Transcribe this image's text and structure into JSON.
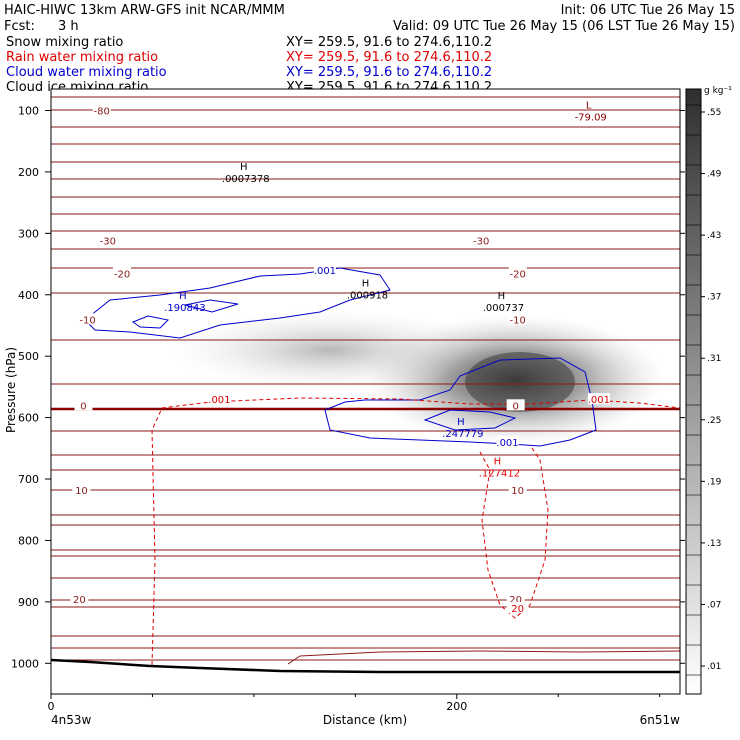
{
  "header": {
    "line1_left": "HAIC-HIWC 13km ARW-GFS init   NCAR/MMM",
    "line1_right": "Init: 06 UTC Tue 26 May 15",
    "fcst_label": "Fcst:",
    "fcst_value": "3 h",
    "valid": "Valid: 09 UTC Tue 26 May 15 (06 LST Tue 26 May 15)"
  },
  "legend": [
    {
      "label": "Snow mixing ratio",
      "xy": "XY= 259.5, 91.6 to 274.6,110.2",
      "color": "#000000"
    },
    {
      "label": "Rain water mixing ratio",
      "xy": "XY= 259.5, 91.6 to 274.6,110.2",
      "color": "#dd0000"
    },
    {
      "label": "Cloud water mixing ratio",
      "xy": "XY= 259.5, 91.6 to 274.6,110.2",
      "color": "#0000cc"
    },
    {
      "label": "Cloud ice mixing ratio",
      "xy": "XY= 259.5, 91.6 to 274.6,110.2",
      "color": "#000000"
    }
  ],
  "chart_data": {
    "type": "contour-cross-section",
    "xlabel": "Distance (km)",
    "ylabel": "Pressure (hPa)",
    "xlim": [
      0,
      310
    ],
    "ylim": [
      1050,
      65
    ],
    "x_ticks": [
      0,
      200
    ],
    "y_ticks": [
      100,
      200,
      300,
      400,
      500,
      600,
      700,
      800,
      900,
      1000
    ],
    "x_endpoint_labels": [
      "4n53w",
      "6n51w"
    ],
    "colorbar": {
      "unit": "g kg⁻¹",
      "tick_labels": [
        ".01",
        ".07",
        ".13",
        ".19",
        ".25",
        ".31",
        ".37",
        ".43",
        ".49",
        ".55"
      ]
    },
    "temperature_contours": [
      {
        "label": "-80",
        "p": 100,
        "x": 25
      },
      {
        "label": "-30",
        "p": 312,
        "x": 28
      },
      {
        "label": "-30",
        "p": 312,
        "x": 212
      },
      {
        "label": "-20",
        "p": 365,
        "x": 35
      },
      {
        "label": "-20",
        "p": 365,
        "x": 230
      },
      {
        "label": "-10",
        "p": 440,
        "x": 18
      },
      {
        "label": "-10",
        "p": 440,
        "x": 230
      },
      {
        "label": "0",
        "p": 580,
        "x": 16
      },
      {
        "label": "0",
        "p": 580,
        "x": 229
      },
      {
        "label": "10",
        "p": 718,
        "x": 15
      },
      {
        "label": "10",
        "p": 718,
        "x": 230
      },
      {
        "label": "20",
        "p": 895,
        "x": 14
      },
      {
        "label": "20",
        "p": 895,
        "x": 229
      }
    ],
    "extrema": [
      {
        "kind": "L",
        "value": "-79.09",
        "x": 265,
        "p": 100,
        "color": "#8b0000"
      },
      {
        "kind": "H",
        "value": ".0007378",
        "x": 95,
        "p": 200,
        "color": "#000000"
      },
      {
        "kind": "H",
        "value": ".000918",
        "x": 155,
        "p": 390,
        "color": "#000000"
      },
      {
        "kind": "H",
        "value": ".000737",
        "x": 222,
        "p": 410,
        "color": "#000000"
      },
      {
        "kind": "H",
        "value": ".190843",
        "x": 65,
        "p": 410,
        "color": "#0000cc"
      },
      {
        "kind": "H",
        "value": ".247779",
        "x": 202,
        "p": 615,
        "color": "#0000cc"
      },
      {
        "kind": "H",
        "value": ".127412",
        "x": 220,
        "p": 680,
        "color": "#dd0000"
      }
    ],
    "contour_value_labels": [
      {
        "value": ".001",
        "x": 135,
        "p": 360,
        "color": "#0000cc"
      },
      {
        "value": ".001",
        "x": 225,
        "p": 640,
        "color": "#0000cc"
      },
      {
        "value": ".001",
        "x": 83,
        "p": 570,
        "color": "#dd0000"
      },
      {
        "value": ".001",
        "x": 270,
        "p": 570,
        "color": "#dd0000"
      },
      {
        "value": "20",
        "x": 230,
        "p": 910,
        "color": "#dd0000"
      }
    ]
  }
}
